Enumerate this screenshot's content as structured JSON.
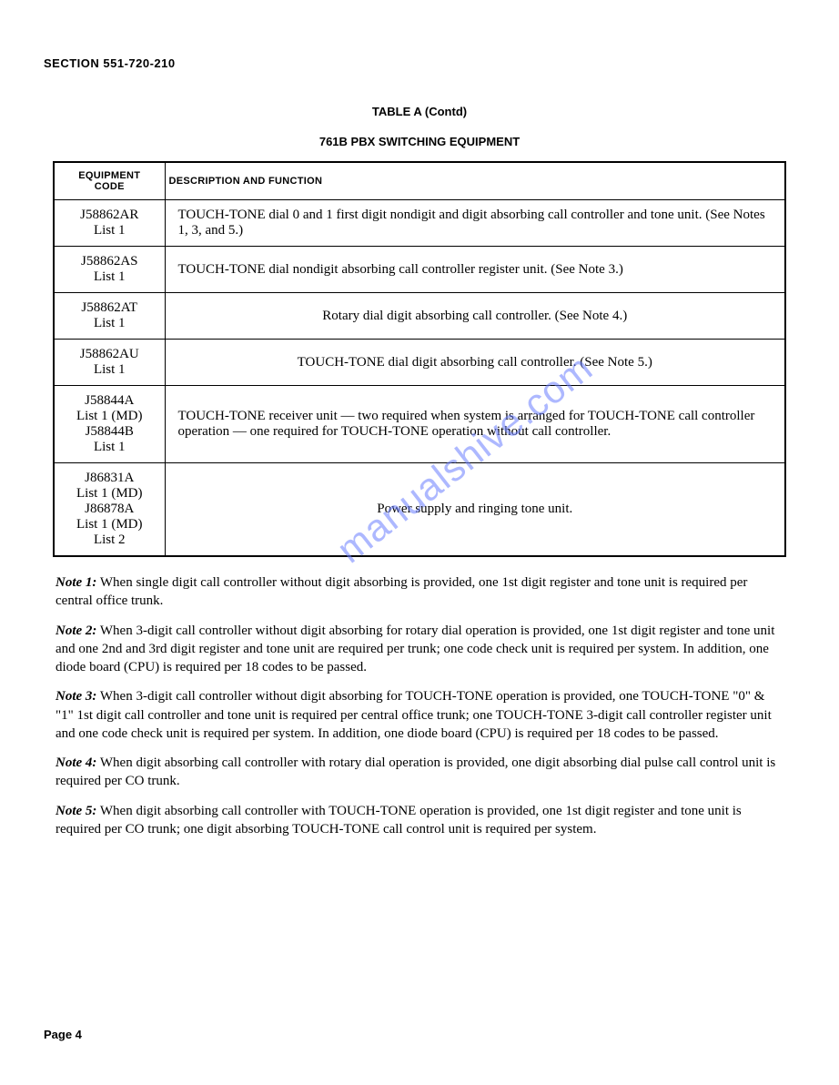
{
  "section_header": "SECTION 551-720-210",
  "table_title": "TABLE A (Contd)",
  "table_subtitle": "761B PBX SWITCHING EQUIPMENT",
  "table": {
    "header_code_line1": "EQUIPMENT",
    "header_code_line2": "CODE",
    "header_desc": "DESCRIPTION AND FUNCTION",
    "rows": [
      {
        "code_lines": [
          "J58862AR",
          "List 1"
        ],
        "desc": "TOUCH-TONE dial 0 and 1 first digit nondigit and digit absorbing call controller and tone unit. (See Notes 1, 3, and 5.)"
      },
      {
        "code_lines": [
          "J58862AS",
          "List 1"
        ],
        "desc": "TOUCH-TONE dial nondigit absorbing call controller register unit. (See Note 3.)"
      },
      {
        "code_lines": [
          "J58862AT",
          "List 1"
        ],
        "desc": "Rotary dial digit absorbing call controller. (See Note 4.)",
        "desc_center": true
      },
      {
        "code_lines": [
          "J58862AU",
          "List 1"
        ],
        "desc": "TOUCH-TONE dial digit absorbing call controller. (See Note 5.)",
        "desc_center": true
      },
      {
        "code_lines": [
          "J58844A",
          "List 1 (MD)",
          "J58844B",
          "List 1"
        ],
        "desc": "TOUCH-TONE receiver unit — two required when system is arranged for TOUCH-TONE call controller operation — one required for TOUCH-TONE operation without call controller."
      },
      {
        "code_lines": [
          "J86831A",
          "List 1 (MD)",
          "J86878A",
          "List 1 (MD)",
          "List 2"
        ],
        "desc": "Power supply and ringing tone unit.",
        "desc_center": true
      }
    ]
  },
  "notes": [
    {
      "label": "Note 1:",
      "text": " When single digit call controller without digit absorbing is provided, one 1st digit register and tone unit is required per central office trunk."
    },
    {
      "label": "Note 2:",
      "text": " When 3-digit call controller without digit absorbing for rotary dial operation is provided, one 1st digit register and tone unit and one 2nd and 3rd digit register and tone unit are required per trunk; one code check unit is required per system. In addition, one diode board (CPU) is required per 18 codes to be passed."
    },
    {
      "label": "Note 3:",
      "text": " When 3-digit call controller without digit absorbing for TOUCH-TONE operation is provided, one TOUCH-TONE \"0\" & \"1\" 1st digit call controller and tone unit is required per central office trunk; one TOUCH-TONE 3-digit call controller register unit and one code check unit is required per system. In addition, one diode board (CPU) is required per 18 codes to be passed."
    },
    {
      "label": "Note 4:",
      "text": " When digit absorbing call controller with rotary dial operation is provided, one digit absorbing dial pulse call control unit is required per CO trunk."
    },
    {
      "label": "Note 5:",
      "text": " When digit absorbing call controller with TOUCH-TONE operation is provided, one 1st digit register and tone unit is required per CO trunk; one digit absorbing TOUCH-TONE call control unit is required per system."
    }
  ],
  "page_number": "Page 4",
  "watermark": "manualshive.com",
  "colors": {
    "text": "#000000",
    "border": "#000000",
    "background": "#ffffff",
    "watermark": "#6b7fff"
  }
}
